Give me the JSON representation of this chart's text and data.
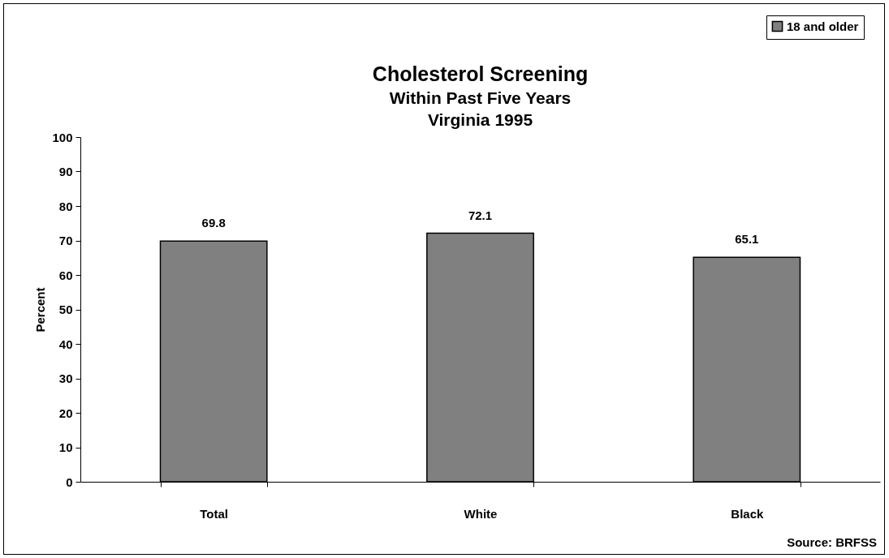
{
  "chart_data": {
    "type": "bar",
    "title": "Cholesterol Screening",
    "subtitle": "Within Past Five Years\nVirginia 1995",
    "ylabel": "Percent",
    "categories": [
      "Total",
      "White",
      "Black"
    ],
    "series": [
      {
        "name": "18 and older",
        "color": "#808080",
        "values": [
          69.8,
          72.1,
          65.1
        ]
      }
    ],
    "ylim": [
      0,
      100
    ],
    "yticks": [
      0,
      10,
      20,
      30,
      40,
      50,
      60,
      70,
      80,
      90,
      100
    ],
    "grid": false,
    "legend": "top right",
    "data_labels": true,
    "annotations": [
      "Source:  BRFSS"
    ]
  }
}
